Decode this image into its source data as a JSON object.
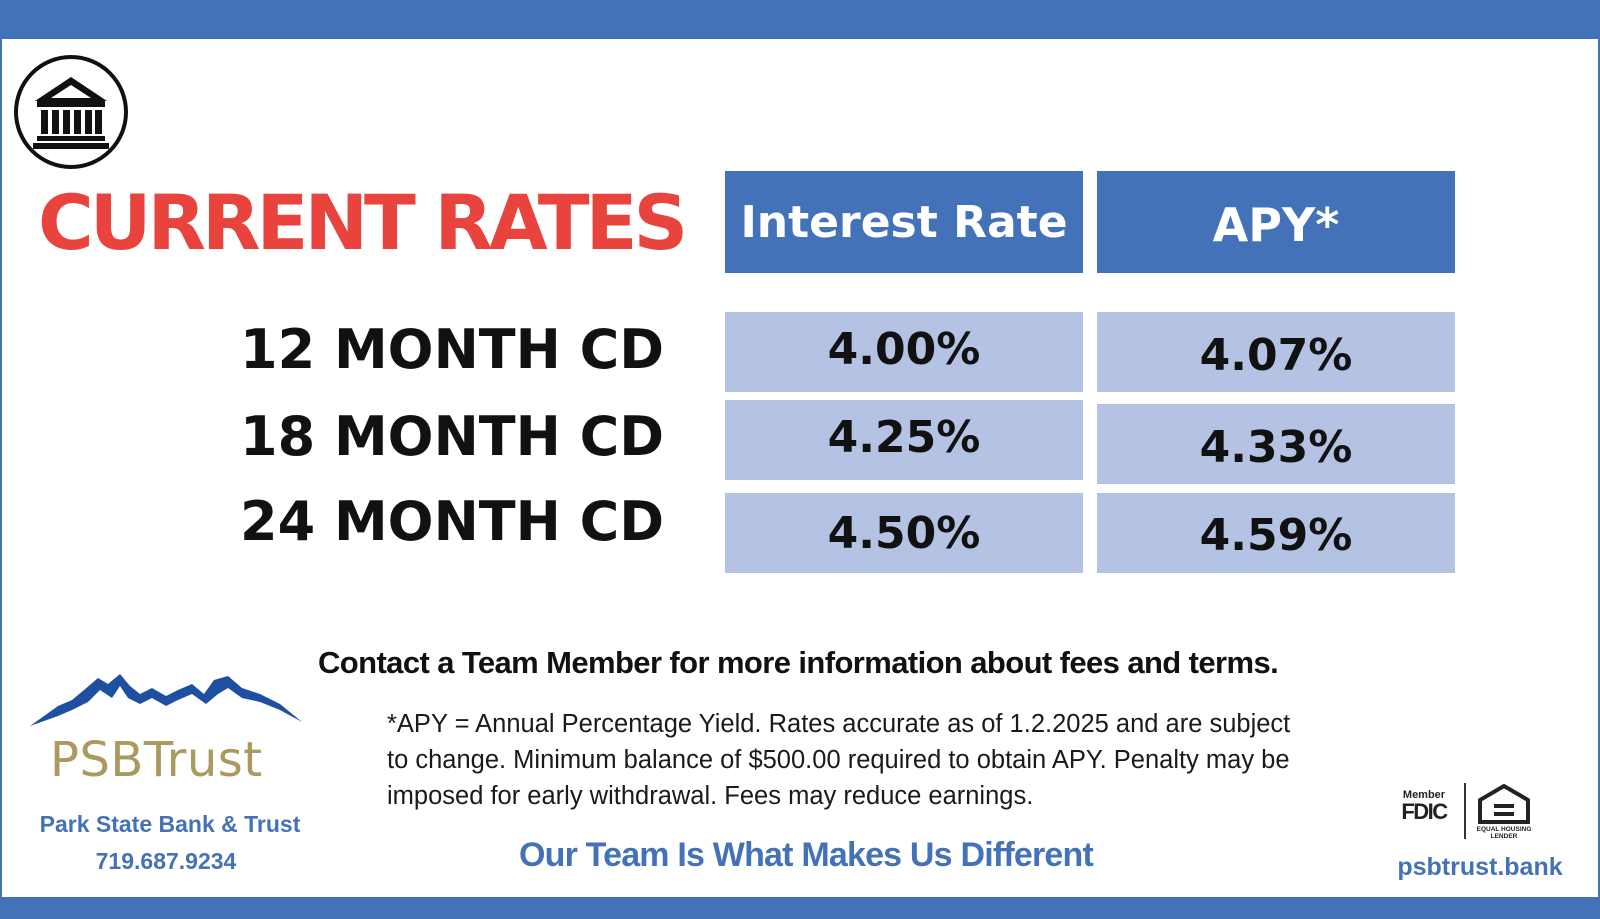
{
  "header": {
    "title": "CURRENT RATES"
  },
  "table": {
    "columns": [
      "Interest Rate",
      "APY*"
    ],
    "rows": [
      {
        "label": "12 MONTH CD",
        "interest_rate": "4.00%",
        "apy": "4.07%"
      },
      {
        "label": "18 MONTH CD",
        "interest_rate": "4.25%",
        "apy": "4.33%"
      },
      {
        "label": "24 MONTH CD",
        "interest_rate": "4.50%",
        "apy": "4.59%"
      }
    ]
  },
  "contact_line": "Contact a Team Member for more information about fees and terms.",
  "disclaimer": {
    "lines": [
      "*APY = Annual Percentage Yield. Rates accurate as of 1.2.2025 and are subject",
      "to change. Minimum balance of $500.00 required to obtain APY. Penalty may be",
      "imposed for early withdrawal. Fees may reduce earnings."
    ]
  },
  "tagline": "Our Team Is What Makes Us Different",
  "brand": {
    "logo_text": "PSBTrust",
    "name": "Park State Bank & Trust",
    "phone": "719.687.9234",
    "website": "psbtrust.bank"
  },
  "badges": {
    "fdic_member": "Member",
    "fdic": "FDIC",
    "equal_housing": "EQUAL HOUSING",
    "lender": "LENDER"
  },
  "icons": [
    "bank-building-icon",
    "mountains-logo-icon",
    "fdic-logo-icon",
    "equal-housing-lender-icon"
  ],
  "colors": {
    "accent_blue": "#4472b8",
    "title_red": "#e8433c",
    "cell_fill": "#b4c2e4",
    "brand_gold": "#aa9a5e"
  }
}
